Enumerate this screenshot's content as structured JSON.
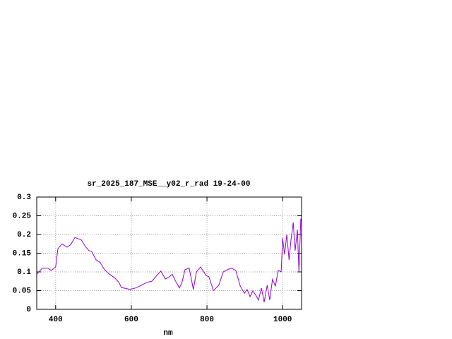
{
  "chart_data": {
    "type": "line",
    "title": "sr_2025_187_MSE__y02_r_rad 19-24-00",
    "x_label": "nm",
    "x": [
      350,
      365,
      380,
      388,
      400,
      406,
      417,
      430,
      440,
      451,
      468,
      480,
      488,
      495,
      507,
      518,
      529,
      542,
      555,
      567,
      574,
      585,
      596,
      611,
      626,
      641,
      654,
      667,
      678,
      690,
      701,
      708,
      716,
      727,
      734,
      742,
      753,
      764,
      772,
      783,
      798,
      805,
      817,
      831,
      843,
      854,
      865,
      876,
      888,
      899,
      906,
      914,
      921,
      929,
      936,
      944,
      951,
      959,
      966,
      973,
      981,
      988,
      996,
      1000,
      1005,
      1011,
      1017,
      1022,
      1028,
      1033,
      1039,
      1043,
      1048
    ],
    "series": [
      {
        "color": "#9400d3",
        "values": [
          0.094,
          0.11,
          0.11,
          0.104,
          0.113,
          0.162,
          0.175,
          0.166,
          0.173,
          0.192,
          0.185,
          0.166,
          0.157,
          0.155,
          0.132,
          0.125,
          0.106,
          0.094,
          0.085,
          0.072,
          0.058,
          0.056,
          0.053,
          0.057,
          0.064,
          0.072,
          0.075,
          0.09,
          0.102,
          0.081,
          0.087,
          0.094,
          0.077,
          0.057,
          0.072,
          0.106,
          0.11,
          0.053,
          0.1,
          0.113,
          0.09,
          0.087,
          0.05,
          0.064,
          0.1,
          0.106,
          0.11,
          0.104,
          0.062,
          0.043,
          0.053,
          0.034,
          0.049,
          0.038,
          0.025,
          0.057,
          0.019,
          0.064,
          0.025,
          0.08,
          0.062,
          0.104,
          0.1,
          0.19,
          0.147,
          0.2,
          0.132,
          0.185,
          0.232,
          0.157,
          0.213,
          0.1,
          0.242
        ]
      }
    ],
    "xlim": [
      350,
      1050
    ],
    "xticks": [
      400,
      600,
      800,
      1000
    ],
    "ylim": [
      0,
      0.3
    ],
    "yticks": [
      0,
      0.05,
      0.1,
      0.15,
      0.2,
      0.25,
      0.3
    ],
    "grid": true
  }
}
